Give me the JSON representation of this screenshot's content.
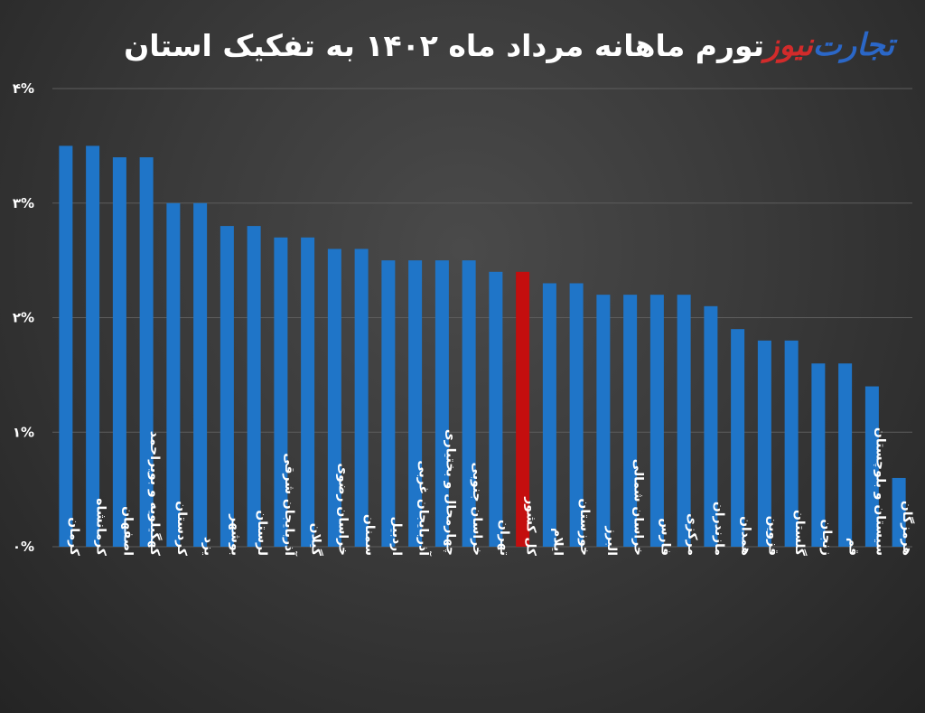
{
  "header": {
    "title": "تورم ماهانه مرداد ماه ۱۴۰۲ به تفکیک استان",
    "logo_part1": "تجارت",
    "logo_part2": "نیوز"
  },
  "colors": {
    "bar": "#1f75c8",
    "highlight": "#c40e0e",
    "grid": "#5d5d5d",
    "text": "#ffffff"
  },
  "chart_data": {
    "type": "bar",
    "title": "تورم ماهانه مرداد ماه ۱۴۰۲ به تفکیک استان",
    "xlabel": "",
    "ylabel": "",
    "ylim": [
      0,
      4
    ],
    "yticks": [
      {
        "value": 0,
        "label": "۰%"
      },
      {
        "value": 1,
        "label": "۱%"
      },
      {
        "value": 2,
        "label": "۲%"
      },
      {
        "value": 3,
        "label": "۳%"
      },
      {
        "value": 4,
        "label": "۴%"
      }
    ],
    "grid": true,
    "highlight_category": "کل کشور",
    "categories": [
      "کرمان",
      "کرمانشاه",
      "اصفهان",
      "کهگیلویه و بویراحمد",
      "کردستان",
      "یزد",
      "بوشهر",
      "لرستان",
      "آذربایجان شرقی",
      "گیلان",
      "خراسان رضوی",
      "سمنان",
      "اردبیل",
      "آذربایجان غربی",
      "چهارمحال و بختیاری",
      "خراسان جنوبی",
      "تهران",
      "کل کشور",
      "ایلام",
      "خوزستان",
      "البرز",
      "خراسان شمالی",
      "فارس",
      "مرکزی",
      "مازندران",
      "همدان",
      "قزوین",
      "گلستان",
      "زنجان",
      "قم",
      "سیستان و بلوچستان",
      "هرمزگان"
    ],
    "values": [
      3.5,
      3.5,
      3.4,
      3.4,
      3.0,
      3.0,
      2.8,
      2.8,
      2.7,
      2.7,
      2.6,
      2.6,
      2.5,
      2.5,
      2.5,
      2.5,
      2.4,
      2.4,
      2.3,
      2.3,
      2.2,
      2.2,
      2.2,
      2.2,
      2.1,
      1.9,
      1.8,
      1.8,
      1.6,
      1.6,
      1.4,
      0.6
    ]
  }
}
